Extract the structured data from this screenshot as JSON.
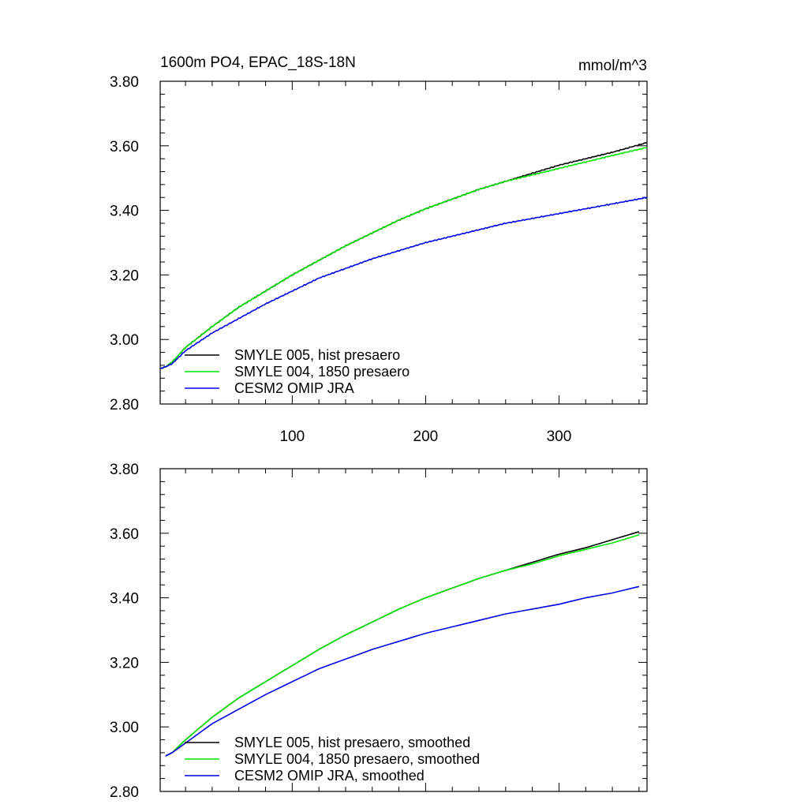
{
  "chart_data": [
    {
      "type": "line",
      "title": "1600m PO4, EPAC_18S-18N",
      "units": "mmol/m^3",
      "xlim": [
        1,
        366
      ],
      "ylim": [
        2.8,
        3.8
      ],
      "x_ticks": [
        100,
        200,
        300
      ],
      "x_tick_labels": [
        "100",
        "200",
        "300"
      ],
      "y_ticks": [
        2.8,
        3.0,
        3.2,
        3.4,
        3.6,
        3.8
      ],
      "y_tick_labels": [
        "2.80",
        "3.00",
        "3.20",
        "3.40",
        "3.60",
        "3.80"
      ],
      "legend_position": "bottom-left",
      "grid": false,
      "x": [
        1,
        5,
        10,
        20,
        40,
        60,
        80,
        100,
        120,
        140,
        160,
        180,
        200,
        220,
        240,
        260,
        280,
        300,
        320,
        340,
        366
      ],
      "series": [
        {
          "name": "SMYLE 005, hist presaero",
          "color": "#000000",
          "values": [
            2.91,
            2.915,
            2.93,
            2.975,
            3.04,
            3.1,
            3.15,
            3.2,
            3.245,
            3.29,
            3.33,
            3.37,
            3.405,
            3.435,
            3.465,
            3.49,
            3.515,
            3.54,
            3.56,
            3.58,
            3.61
          ]
        },
        {
          "name": "SMYLE 004, 1850 presaero",
          "color": "#00e600",
          "values": [
            2.91,
            2.915,
            2.93,
            2.975,
            3.04,
            3.1,
            3.15,
            3.2,
            3.245,
            3.29,
            3.33,
            3.37,
            3.405,
            3.435,
            3.465,
            3.49,
            3.51,
            3.53,
            3.55,
            3.57,
            3.595
          ]
        },
        {
          "name": "CESM2 OMIP JRA",
          "color": "#0000e6",
          "values": [
            2.91,
            2.915,
            2.925,
            2.965,
            3.02,
            3.065,
            3.11,
            3.15,
            3.19,
            3.22,
            3.25,
            3.275,
            3.3,
            3.32,
            3.34,
            3.36,
            3.375,
            3.39,
            3.405,
            3.42,
            3.44
          ]
        }
      ]
    },
    {
      "type": "line",
      "xlim": [
        1,
        366
      ],
      "ylim": [
        2.8,
        3.8
      ],
      "x_ticks": [
        100,
        200,
        300
      ],
      "y_ticks": [
        2.8,
        3.0,
        3.2,
        3.4,
        3.6,
        3.8
      ],
      "y_tick_labels": [
        "2.80",
        "3.00",
        "3.20",
        "3.40",
        "3.60",
        "3.80"
      ],
      "legend_position": "bottom-left",
      "grid": false,
      "x": [
        5,
        10,
        20,
        40,
        60,
        80,
        100,
        120,
        140,
        160,
        180,
        200,
        220,
        240,
        260,
        280,
        300,
        320,
        340,
        360
      ],
      "series": [
        {
          "name": "SMYLE 005, hist presaero, smoothed",
          "color": "#000000",
          "values": [
            2.91,
            2.92,
            2.96,
            3.03,
            3.09,
            3.14,
            3.19,
            3.24,
            3.285,
            3.325,
            3.365,
            3.4,
            3.43,
            3.46,
            3.485,
            3.51,
            3.535,
            3.555,
            3.58,
            3.605
          ]
        },
        {
          "name": "SMYLE 004, 1850 presaero, smoothed",
          "color": "#00e600",
          "values": [
            2.91,
            2.92,
            2.96,
            3.03,
            3.09,
            3.14,
            3.19,
            3.24,
            3.285,
            3.325,
            3.365,
            3.4,
            3.43,
            3.46,
            3.485,
            3.505,
            3.53,
            3.55,
            3.57,
            3.595
          ]
        },
        {
          "name": "CESM2 OMIP JRA, smoothed",
          "color": "#0000e6",
          "values": [
            2.91,
            2.92,
            2.95,
            3.01,
            3.055,
            3.1,
            3.14,
            3.18,
            3.21,
            3.24,
            3.265,
            3.29,
            3.31,
            3.33,
            3.35,
            3.365,
            3.38,
            3.4,
            3.415,
            3.435
          ]
        }
      ]
    }
  ]
}
